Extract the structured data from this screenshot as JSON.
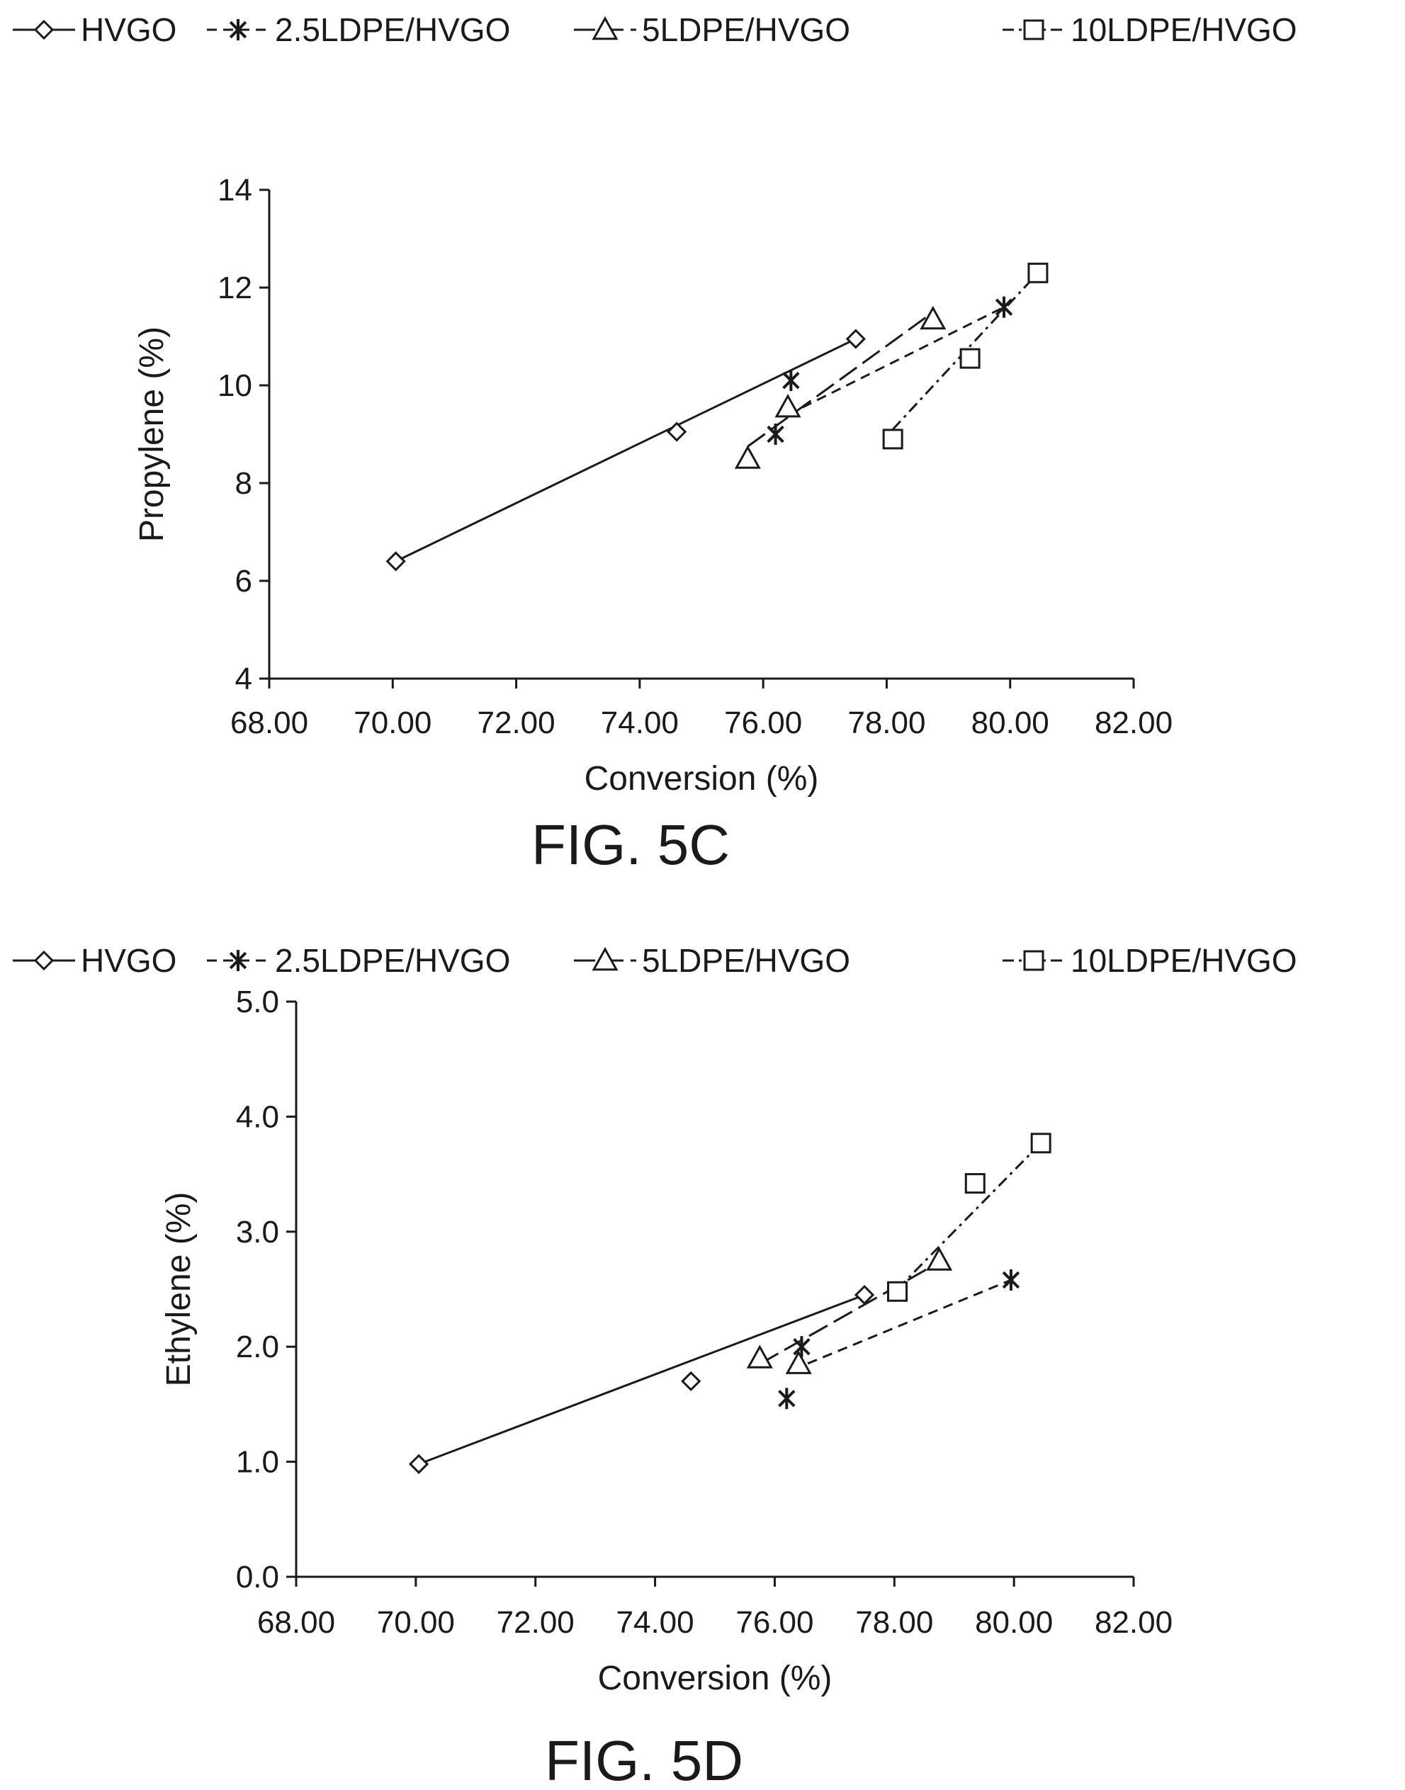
{
  "legend": [
    {
      "name": "HVGO",
      "marker": "diamond",
      "dash": "solid"
    },
    {
      "name": "2.5LDPE/HVGO",
      "marker": "asterisk",
      "dash": "dashed"
    },
    {
      "name": "5LDPE/HVGO",
      "marker": "triangle",
      "dash": "longdash"
    },
    {
      "name": "10LDPE/HVGO",
      "marker": "square",
      "dash": "dashdot"
    }
  ],
  "chart_data": [
    {
      "type": "scatter",
      "figure_label": "FIG. 5C",
      "xlabel": "Conversion (%)",
      "ylabel": "Propylene (%)",
      "xlim": [
        68,
        82
      ],
      "ylim": [
        4,
        14
      ],
      "xticks": [
        "68.00",
        "70.00",
        "72.00",
        "74.00",
        "76.00",
        "78.00",
        "80.00",
        "82.00"
      ],
      "yticks": [
        "4",
        "6",
        "8",
        "10",
        "12",
        "14"
      ],
      "grid": false,
      "legend_position": "top",
      "series": [
        {
          "name": "HVGO",
          "points": [
            [
              70.05,
              6.4
            ],
            [
              74.6,
              9.05
            ],
            [
              77.5,
              10.95
            ]
          ]
        },
        {
          "name": "2.5LDPE/HVGO",
          "points": [
            [
              76.2,
              9.0
            ],
            [
              76.45,
              10.1
            ],
            [
              79.9,
              11.6
            ]
          ]
        },
        {
          "name": "5LDPE/HVGO",
          "points": [
            [
              75.75,
              8.5
            ],
            [
              76.4,
              9.55
            ],
            [
              78.75,
              11.35
            ]
          ]
        },
        {
          "name": "10LDPE/HVGO",
          "points": [
            [
              78.1,
              8.9
            ],
            [
              79.35,
              10.55
            ],
            [
              80.45,
              12.3
            ]
          ]
        }
      ],
      "trendlines": [
        {
          "series": "HVGO",
          "from": [
            70.05,
            6.4
          ],
          "to": [
            77.5,
            10.95
          ]
        },
        {
          "series": "2.5LDPE/HVGO",
          "from": [
            76.4,
            9.4
          ],
          "to": [
            79.9,
            11.6
          ]
        },
        {
          "series": "5LDPE/HVGO",
          "from": [
            75.75,
            8.75
          ],
          "to": [
            78.7,
            11.45
          ]
        },
        {
          "series": "10LDPE/HVGO",
          "from": [
            78.1,
            9.1
          ],
          "to": [
            80.45,
            12.3
          ]
        }
      ]
    },
    {
      "type": "scatter",
      "figure_label": "FIG. 5D",
      "xlabel": "Conversion (%)",
      "ylabel": "Ethylene (%)",
      "xlim": [
        68,
        82
      ],
      "ylim": [
        0,
        5
      ],
      "xticks": [
        "68.00",
        "70.00",
        "72.00",
        "74.00",
        "76.00",
        "78.00",
        "80.00",
        "82.00"
      ],
      "yticks": [
        "0.0",
        "1.0",
        "2.0",
        "3.0",
        "4.0",
        "5.0"
      ],
      "grid": false,
      "legend_position": "top",
      "series": [
        {
          "name": "HVGO",
          "points": [
            [
              70.05,
              0.98
            ],
            [
              74.6,
              1.7
            ],
            [
              77.5,
              2.45
            ]
          ]
        },
        {
          "name": "2.5LDPE/HVGO",
          "points": [
            [
              76.2,
              1.55
            ],
            [
              76.45,
              2.0
            ],
            [
              79.95,
              2.58
            ]
          ]
        },
        {
          "name": "5LDPE/HVGO",
          "points": [
            [
              75.75,
              1.9
            ],
            [
              76.4,
              1.85
            ],
            [
              78.75,
              2.75
            ]
          ]
        },
        {
          "name": "10LDPE/HVGO",
          "points": [
            [
              78.05,
              2.48
            ],
            [
              79.35,
              3.42
            ],
            [
              80.45,
              3.77
            ]
          ]
        }
      ],
      "trendlines": [
        {
          "series": "HVGO",
          "from": [
            70.05,
            0.98
          ],
          "to": [
            77.5,
            2.45
          ]
        },
        {
          "series": "2.5LDPE/HVGO",
          "from": [
            76.3,
            1.8
          ],
          "to": [
            79.95,
            2.58
          ]
        },
        {
          "series": "5LDPE/HVGO",
          "from": [
            75.75,
            1.85
          ],
          "to": [
            78.7,
            2.72
          ]
        },
        {
          "series": "10LDPE/HVGO",
          "from": [
            78.05,
            2.5
          ],
          "to": [
            80.45,
            3.77
          ]
        }
      ]
    }
  ]
}
